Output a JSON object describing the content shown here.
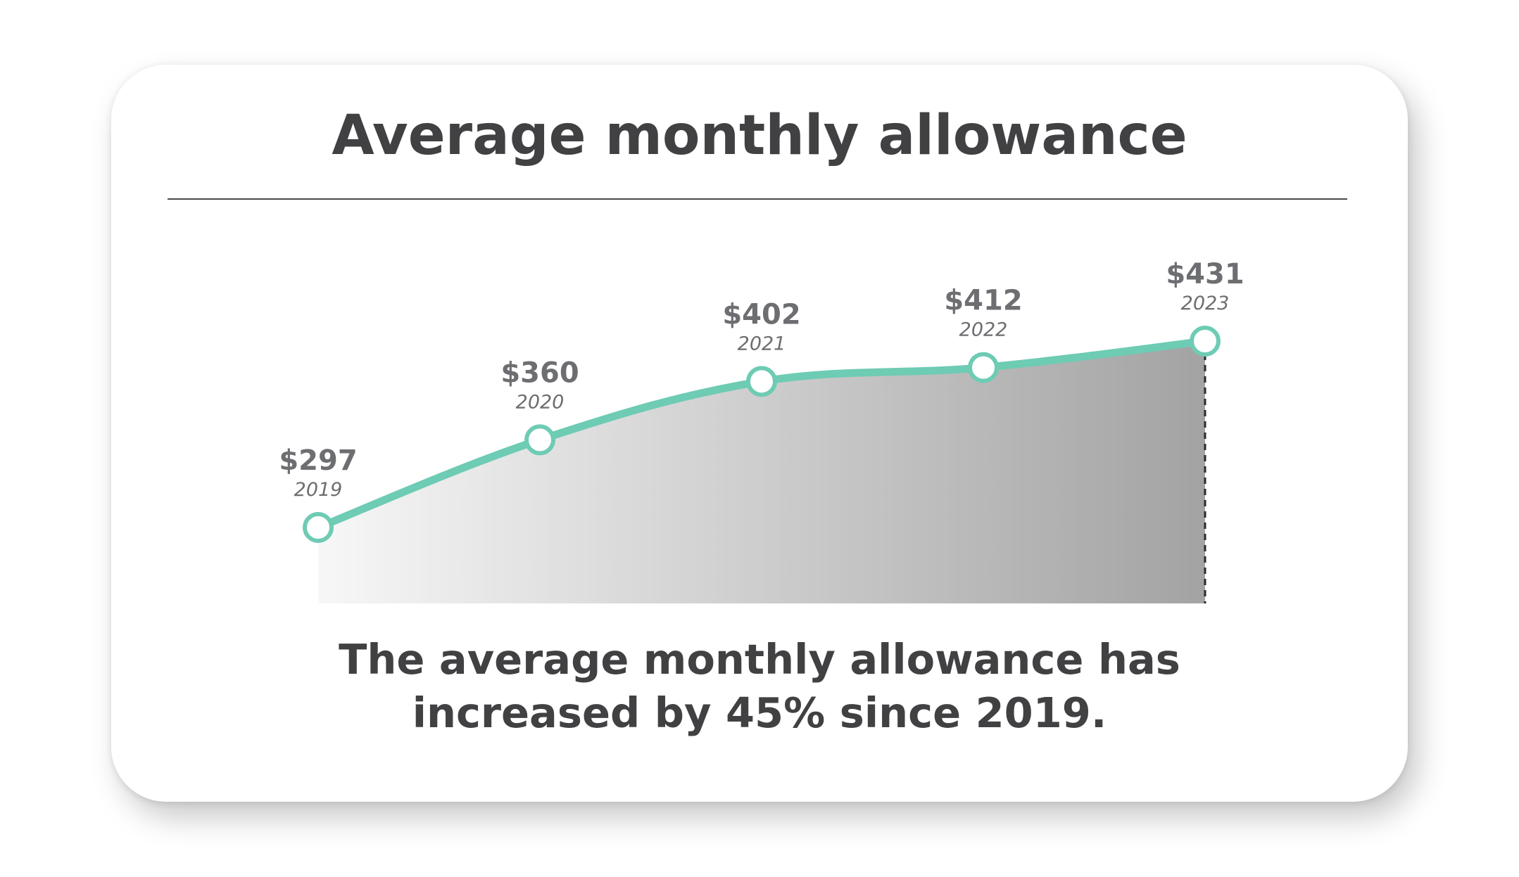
{
  "title": "Average monthly allowance",
  "caption_line1": "The average monthly allowance has",
  "caption_line2": "increased by 45% since 2019.",
  "colors": {
    "line": "#6ecbb4",
    "text": "#414143",
    "label": "#6d6e71",
    "area_start": "#f7f7f7",
    "area_end": "#a3a3a3"
  },
  "chart_data": {
    "type": "area",
    "x": [
      "2019",
      "2020",
      "2021",
      "2022",
      "2023"
    ],
    "values": [
      297,
      360,
      402,
      412,
      431
    ],
    "value_labels": [
      "$297",
      "$360",
      "$402",
      "$412",
      "$431"
    ],
    "title": "Average monthly allowance",
    "xlabel": "",
    "ylabel": "",
    "grid": false,
    "legend": "none"
  }
}
